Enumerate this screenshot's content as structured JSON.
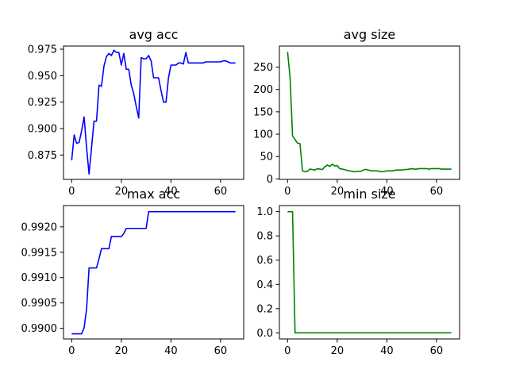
{
  "chart_data": [
    {
      "type": "line",
      "title": "avg acc",
      "xlabel": "",
      "ylabel": "",
      "xlim": [
        -3.3,
        69.3
      ],
      "ylim": [
        0.852,
        0.978
      ],
      "xticks": [
        0,
        20,
        40,
        60
      ],
      "xtick_labels": [
        "0",
        "20",
        "40",
        "60"
      ],
      "yticks": [
        0.875,
        0.9,
        0.925,
        0.95,
        0.975
      ],
      "ytick_labels": [
        "0.875",
        "0.900",
        "0.925",
        "0.950",
        "0.975"
      ],
      "grid": false,
      "series": [
        {
          "color": "#0000ff",
          "x": [
            0,
            1,
            2,
            3,
            4,
            5,
            6,
            7,
            8,
            9,
            10,
            11,
            12,
            13,
            14,
            15,
            16,
            17,
            18,
            19,
            20,
            21,
            22,
            23,
            24,
            25,
            26,
            27,
            28,
            29,
            30,
            31,
            32,
            33,
            34,
            35,
            36,
            37,
            38,
            39,
            40,
            41,
            42,
            43,
            44,
            45,
            46,
            47,
            48,
            49,
            50,
            51,
            52,
            53,
            54,
            55,
            56,
            57,
            58,
            59,
            60,
            61,
            62,
            63,
            64,
            65,
            66
          ],
          "y": [
            0.87,
            0.894,
            0.886,
            0.887,
            0.898,
            0.911,
            0.882,
            0.857,
            0.882,
            0.907,
            0.907,
            0.941,
            0.94,
            0.959,
            0.968,
            0.971,
            0.969,
            0.974,
            0.972,
            0.972,
            0.96,
            0.971,
            0.956,
            0.956,
            0.941,
            0.933,
            0.921,
            0.91,
            0.967,
            0.966,
            0.966,
            0.969,
            0.964,
            0.948,
            0.948,
            0.948,
            0.936,
            0.925,
            0.925,
            0.948,
            0.96,
            0.96,
            0.96,
            0.962,
            0.962,
            0.961,
            0.972,
            0.962,
            0.962,
            0.962,
            0.962,
            0.962,
            0.962,
            0.962,
            0.963,
            0.963,
            0.963,
            0.963,
            0.963,
            0.963,
            0.963,
            0.964,
            0.964,
            0.963,
            0.962,
            0.962,
            0.962
          ]
        }
      ]
    },
    {
      "type": "line",
      "title": "avg size",
      "xlabel": "",
      "ylabel": "",
      "xlim": [
        -3.3,
        69.3
      ],
      "ylim": [
        -1,
        297
      ],
      "xticks": [
        0,
        20,
        40,
        60
      ],
      "xtick_labels": [
        "0",
        "20",
        "40",
        "60"
      ],
      "yticks": [
        0,
        50,
        100,
        150,
        200,
        250
      ],
      "ytick_labels": [
        "0",
        "50",
        "100",
        "150",
        "200",
        "250"
      ],
      "grid": false,
      "series": [
        {
          "color": "#008000",
          "x": [
            0,
            1,
            2,
            3,
            4,
            5,
            6,
            7,
            8,
            9,
            10,
            11,
            12,
            13,
            14,
            15,
            16,
            17,
            18,
            19,
            20,
            21,
            22,
            23,
            24,
            25,
            26,
            27,
            28,
            29,
            30,
            31,
            32,
            33,
            34,
            35,
            36,
            37,
            38,
            39,
            40,
            41,
            42,
            43,
            44,
            45,
            46,
            47,
            48,
            49,
            50,
            51,
            52,
            53,
            54,
            55,
            56,
            57,
            58,
            59,
            60,
            61,
            62,
            63,
            64,
            65,
            66
          ],
          "y": [
            284,
            227,
            96,
            88,
            80,
            79,
            18,
            16,
            17,
            22,
            21,
            20,
            23,
            22,
            21,
            27,
            31,
            28,
            33,
            29,
            30,
            23,
            22,
            21,
            19,
            18,
            17,
            16,
            17,
            17,
            18,
            21,
            21,
            19,
            18,
            18,
            18,
            17,
            16,
            17,
            18,
            18,
            18,
            19,
            20,
            20,
            20,
            21,
            21,
            22,
            23,
            22,
            22,
            23,
            23,
            23,
            23,
            22,
            23,
            23,
            23,
            23,
            22,
            22,
            22,
            22,
            22
          ]
        }
      ]
    },
    {
      "type": "line",
      "title": "max acc",
      "xlabel": "",
      "ylabel": "",
      "xlim": [
        -3.3,
        69.3
      ],
      "ylim": [
        0.98979,
        0.99242
      ],
      "xticks": [
        0,
        20,
        40,
        60
      ],
      "xtick_labels": [
        "0",
        "20",
        "40",
        "60"
      ],
      "yticks": [
        0.99,
        0.9905,
        0.991,
        0.9915,
        0.992
      ],
      "ytick_labels": [
        "0.9900",
        "0.9905",
        "0.9910",
        "0.9915",
        "0.9920"
      ],
      "grid": false,
      "series": [
        {
          "color": "#0000ff",
          "x": [
            0,
            4,
            5,
            6,
            7,
            8,
            9,
            10,
            11,
            12,
            13,
            14,
            15,
            16,
            17,
            18,
            19,
            20,
            21,
            22,
            23,
            24,
            25,
            26,
            27,
            28,
            29,
            30,
            31,
            66
          ],
          "y": [
            0.98989,
            0.98989,
            0.99001,
            0.99038,
            0.99119,
            0.99119,
            0.99119,
            0.99119,
            0.99137,
            0.99157,
            0.99157,
            0.99157,
            0.99157,
            0.99181,
            0.99181,
            0.99181,
            0.99181,
            0.99181,
            0.99187,
            0.99197,
            0.99197,
            0.99197,
            0.99197,
            0.99197,
            0.99197,
            0.99197,
            0.99197,
            0.99197,
            0.9923,
            0.9923
          ]
        }
      ]
    },
    {
      "type": "line",
      "title": "min size",
      "xlabel": "",
      "ylabel": "",
      "xlim": [
        -3.3,
        69.3
      ],
      "ylim": [
        -0.05,
        1.05
      ],
      "xticks": [
        0,
        20,
        40,
        60
      ],
      "xtick_labels": [
        "0",
        "20",
        "40",
        "60"
      ],
      "yticks": [
        0,
        0.2,
        0.4,
        0.6,
        0.8,
        1.0
      ],
      "ytick_labels": [
        "0.0",
        "0.2",
        "0.4",
        "0.6",
        "0.8",
        "1.0"
      ],
      "grid": false,
      "series": [
        {
          "color": "#008000",
          "x": [
            0,
            2,
            3,
            66
          ],
          "y": [
            1,
            1,
            0,
            0
          ]
        }
      ]
    }
  ]
}
